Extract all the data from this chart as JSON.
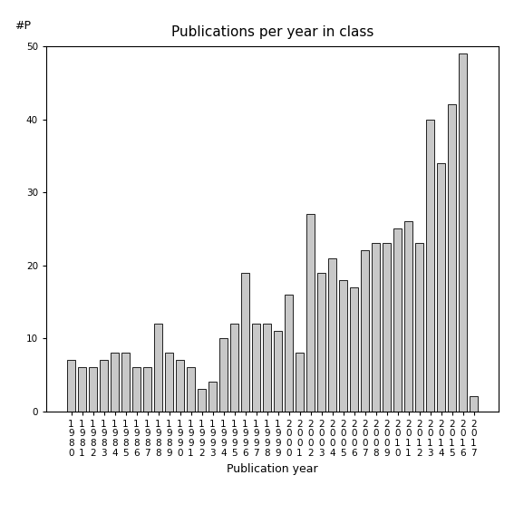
{
  "title": "Publications per year in class",
  "xlabel": "Publication year",
  "ylabel": "#P",
  "years": [
    1980,
    1981,
    1982,
    1983,
    1984,
    1985,
    1986,
    1987,
    1988,
    1989,
    1990,
    1991,
    1992,
    1993,
    1994,
    1995,
    1996,
    1997,
    1998,
    1999,
    2000,
    2001,
    2002,
    2003,
    2004,
    2005,
    2006,
    2007,
    2008,
    2009,
    2010,
    2011,
    2012,
    2013,
    2014,
    2015,
    2016,
    2017
  ],
  "values": [
    7,
    6,
    6,
    7,
    8,
    8,
    6,
    6,
    12,
    8,
    7,
    6,
    3,
    4,
    10,
    12,
    19,
    12,
    12,
    11,
    16,
    8,
    27,
    19,
    21,
    18,
    17,
    22,
    23,
    23,
    25,
    26,
    23,
    40,
    34,
    42,
    49,
    2
  ],
  "bar_color": "#c8c8c8",
  "bar_edge_color": "#000000",
  "ylim": [
    0,
    50
  ],
  "yticks": [
    0,
    10,
    20,
    30,
    40,
    50
  ],
  "background_color": "#ffffff",
  "title_fontsize": 11,
  "axis_label_fontsize": 9,
  "tick_label_fontsize": 7.5
}
